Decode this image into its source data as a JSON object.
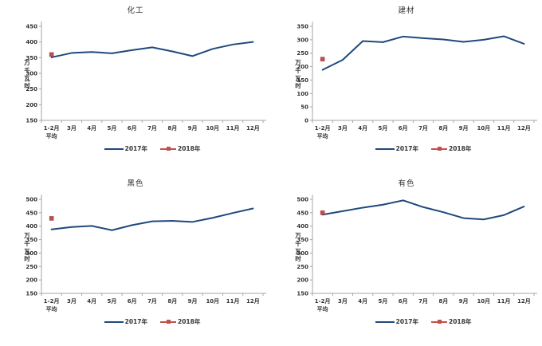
{
  "colors": {
    "series_2017": "#1F497D",
    "series_2018": "#C0504D",
    "marker_2018_border": "#8C3836",
    "axis_line": "#A6A6A6",
    "tick_text": "#333333",
    "title_text": "#333333"
  },
  "chart_data": [
    {
      "type": "line",
      "title": "化工",
      "ylabel": "万千瓦时",
      "ymin": 150,
      "ymax": 450,
      "ystep": 50,
      "grid": false,
      "legend_position": "bottom",
      "categories": [
        "1-2月",
        "3月",
        "4月",
        "5月",
        "6月",
        "7月",
        "8月",
        "9月",
        "10月",
        "11月",
        "12月"
      ],
      "first_category_line2": "平均",
      "series": [
        {
          "name": "2017年",
          "style": "line",
          "values": [
            351,
            365,
            368,
            364,
            374,
            383,
            370,
            355,
            378,
            392,
            400
          ]
        },
        {
          "name": "2018年",
          "style": "marker",
          "values": [
            360
          ]
        }
      ]
    },
    {
      "type": "line",
      "title": "建材",
      "ylabel": "万千瓦时",
      "ymin": 0,
      "ymax": 350,
      "ystep": 50,
      "grid": false,
      "legend_position": "bottom",
      "categories": [
        "1-2月",
        "3月",
        "4月",
        "5月",
        "6月",
        "7月",
        "8月",
        "9月",
        "10月",
        "11月",
        "12月"
      ],
      "first_category_line2": "平均",
      "series": [
        {
          "name": "2017年",
          "style": "line",
          "values": [
            188,
            225,
            295,
            291,
            312,
            306,
            301,
            292,
            300,
            313,
            285
          ]
        },
        {
          "name": "2018年",
          "style": "marker",
          "values": [
            228
          ]
        }
      ]
    },
    {
      "type": "line",
      "title": "黑色",
      "ylabel": "万千瓦时",
      "ymin": 150,
      "ymax": 500,
      "ystep": 50,
      "grid": false,
      "legend_position": "bottom",
      "categories": [
        "1-2月",
        "3月",
        "4月",
        "5月",
        "6月",
        "7月",
        "8月",
        "9月",
        "10月",
        "11月",
        "12月"
      ],
      "first_category_line2": "平均",
      "series": [
        {
          "name": "2017年",
          "style": "line",
          "values": [
            388,
            397,
            401,
            385,
            404,
            418,
            420,
            416,
            431,
            449,
            466
          ]
        },
        {
          "name": "2018年",
          "style": "marker",
          "values": [
            429
          ]
        }
      ]
    },
    {
      "type": "line",
      "title": "有色",
      "ylabel": "万千瓦时",
      "ymin": 150,
      "ymax": 500,
      "ystep": 50,
      "grid": false,
      "legend_position": "bottom",
      "categories": [
        "1-2月",
        "3月",
        "4月",
        "5月",
        "6月",
        "7月",
        "8月",
        "9月",
        "10月",
        "11月",
        "12月"
      ],
      "first_category_line2": "平均",
      "series": [
        {
          "name": "2017年",
          "style": "line",
          "values": [
            443,
            456,
            469,
            480,
            496,
            471,
            452,
            430,
            425,
            441,
            473
          ]
        },
        {
          "name": "2018年",
          "style": "marker",
          "values": [
            450
          ]
        }
      ]
    }
  ]
}
